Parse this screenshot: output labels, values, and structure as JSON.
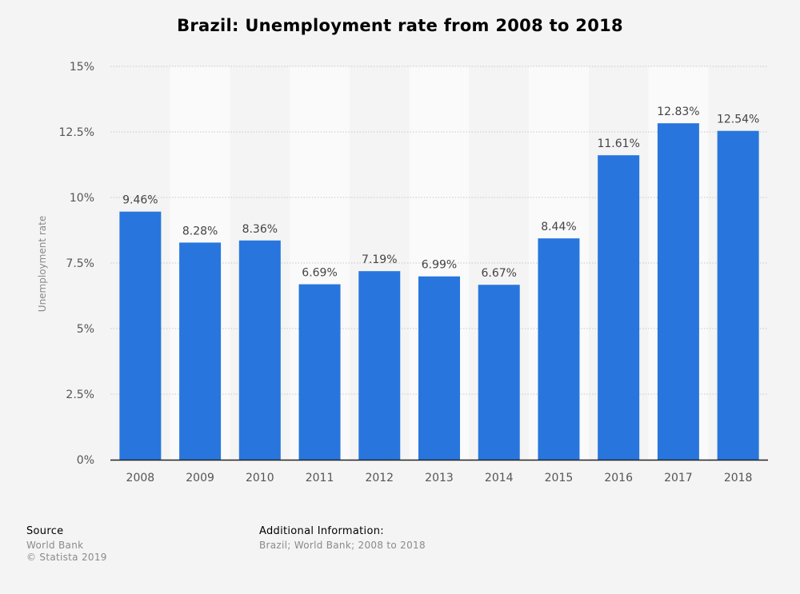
{
  "chart_data": {
    "type": "bar",
    "title": "Brazil: Unemployment rate from 2008 to 2018",
    "xlabel": "",
    "ylabel": "Unemployment rate",
    "categories": [
      "2008",
      "2009",
      "2010",
      "2011",
      "2012",
      "2013",
      "2014",
      "2015",
      "2016",
      "2017",
      "2018"
    ],
    "values": [
      9.46,
      8.28,
      8.36,
      6.69,
      7.19,
      6.99,
      6.67,
      8.44,
      11.61,
      12.83,
      12.54
    ],
    "data_labels": [
      "9.46%",
      "8.28%",
      "8.36%",
      "6.69%",
      "7.19%",
      "6.99%",
      "6.67%",
      "8.44%",
      "11.61%",
      "12.83%",
      "12.54%"
    ],
    "ylim": [
      0,
      15
    ],
    "yticks": [
      0,
      2.5,
      5,
      7.5,
      10,
      12.5,
      15
    ],
    "ytick_labels": [
      "0%",
      "2.5%",
      "5%",
      "7.5%",
      "10%",
      "12.5%",
      "15%"
    ],
    "grid": true,
    "bar_color": "#2876dd"
  },
  "source": {
    "heading": "Source",
    "lines": [
      "World Bank",
      "© Statista 2019"
    ]
  },
  "additional_info": {
    "heading": "Additional Information:",
    "lines": [
      "Brazil; World Bank; 2008 to 2018"
    ]
  }
}
